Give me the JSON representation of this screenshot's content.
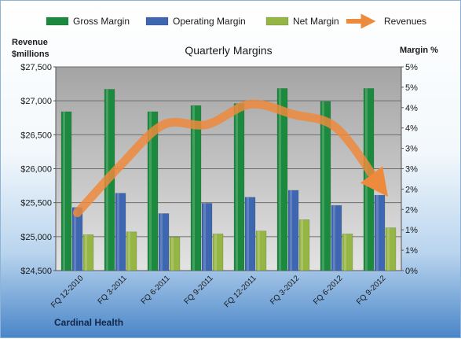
{
  "chart_data": {
    "type": "bar",
    "title": "Quarterly Margins",
    "company": "Cardinal Health",
    "ylabel_left": [
      "Revenue",
      "$millions"
    ],
    "ylabel_right": "Margin %",
    "categories": [
      "FQ 12-2010",
      "FQ 3-2011",
      "FQ 6-2011",
      "FQ 9-2011",
      "FQ 12-2011",
      "FQ 3-2012",
      "FQ 6-2012",
      "FQ 9-2012"
    ],
    "ylim_left": [
      24500,
      27500
    ],
    "yticks_left": [
      "$24,500",
      "$25,000",
      "$25,500",
      "$26,000",
      "$26,500",
      "$27,000",
      "$27,500"
    ],
    "ylim_right": [
      0,
      5
    ],
    "yticks_right": [
      "0%",
      "1%",
      "1%",
      "2%",
      "2%",
      "3%",
      "3%",
      "4%",
      "4%",
      "5%",
      "5%"
    ],
    "series": [
      {
        "name": "Gross Margin",
        "kind": "bar",
        "axis": "right",
        "color": "#1b8a3e",
        "values": [
          3.9,
          4.45,
          3.9,
          4.05,
          4.1,
          4.47,
          4.15,
          4.47
        ]
      },
      {
        "name": "Operating Margin",
        "kind": "bar",
        "axis": "right",
        "color": "#3f66b0",
        "values": [
          1.55,
          1.9,
          1.4,
          1.65,
          1.8,
          1.97,
          1.6,
          1.85
        ]
      },
      {
        "name": "Net Margin",
        "kind": "bar",
        "axis": "right",
        "color": "#95b544",
        "values": [
          0.88,
          0.95,
          0.82,
          0.9,
          0.97,
          1.25,
          0.9,
          1.05
        ]
      },
      {
        "name": "Revenues",
        "kind": "arrow",
        "axis": "left",
        "color": "#ed8a3c",
        "values": [
          25350,
          26050,
          26650,
          26650,
          26950,
          26800,
          26600,
          25750
        ]
      }
    ],
    "legend_position": "top",
    "grid": true
  }
}
